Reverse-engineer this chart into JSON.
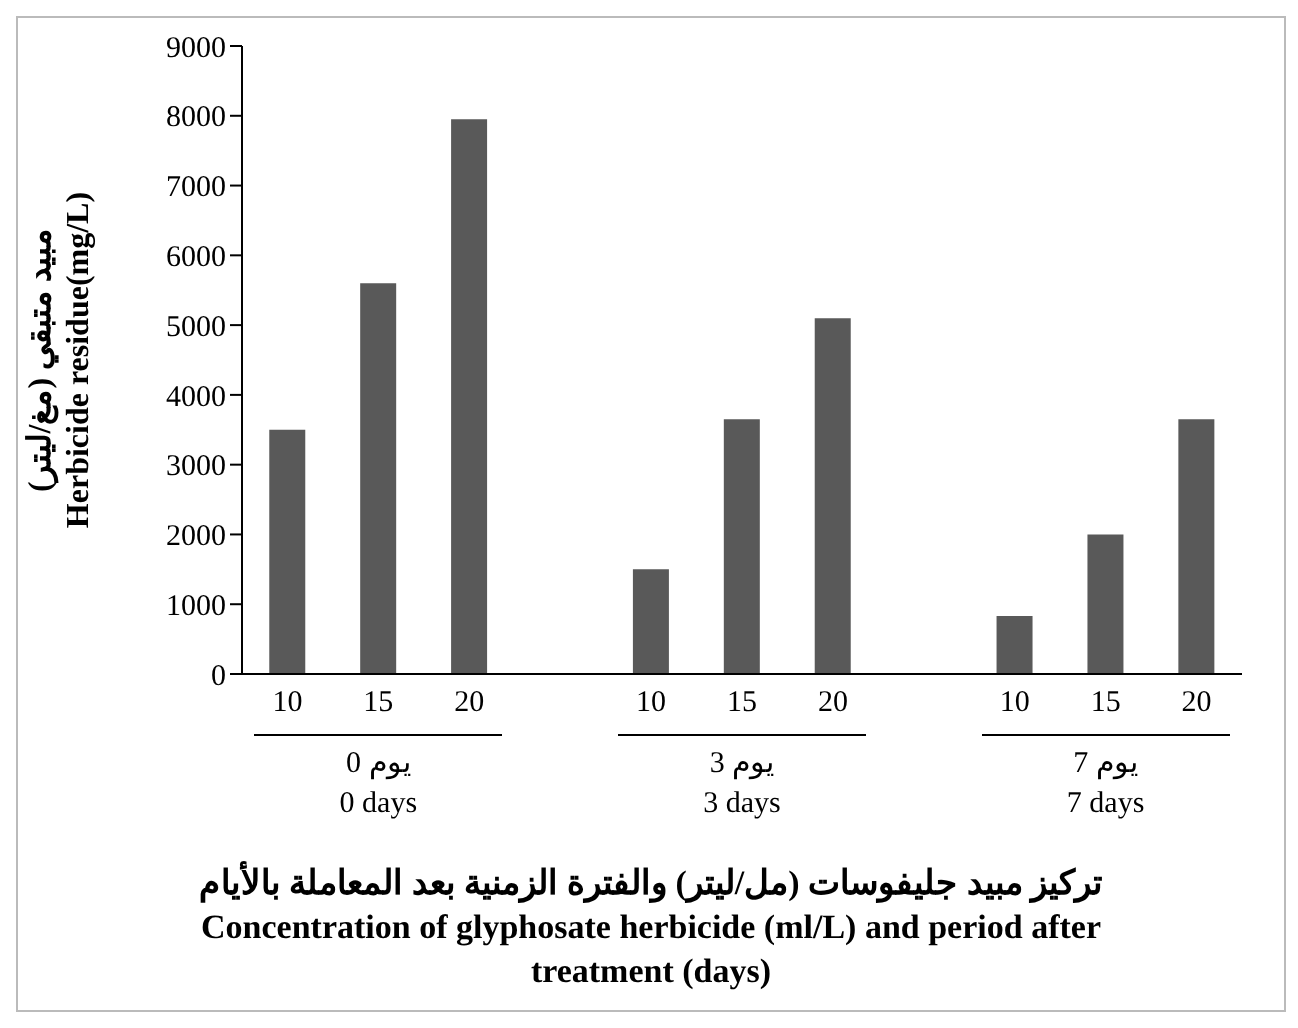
{
  "chart_data": {
    "type": "bar",
    "categories": [
      "10",
      "15",
      "20",
      null,
      "10",
      "15",
      "20",
      null,
      "10",
      "15",
      "20"
    ],
    "values": [
      3500,
      5600,
      7950,
      null,
      1500,
      3650,
      5100,
      null,
      830,
      2000,
      3650
    ],
    "color": "#595959",
    "ylim": [
      0,
      9000
    ],
    "yticks": [
      0,
      1000,
      2000,
      3000,
      4000,
      5000,
      6000,
      7000,
      8000,
      9000
    ],
    "ylabel": "مبيد متبقي (مغ/ليتر)\nHerbicide  residue(mg/L)",
    "xlabel": "تركيز مبيد جليفوسات (مل/ليتر) والفترة الزمنية بعد المعاملة بالأيام\nConcentration of glyphosate herbicide (ml/L) and period after treatment (days)",
    "annotations": [
      "0 يوم\n0 days",
      "3 يوم\n3 days",
      "7 يوم\n7 days"
    ],
    "grid": false,
    "legend": false
  }
}
